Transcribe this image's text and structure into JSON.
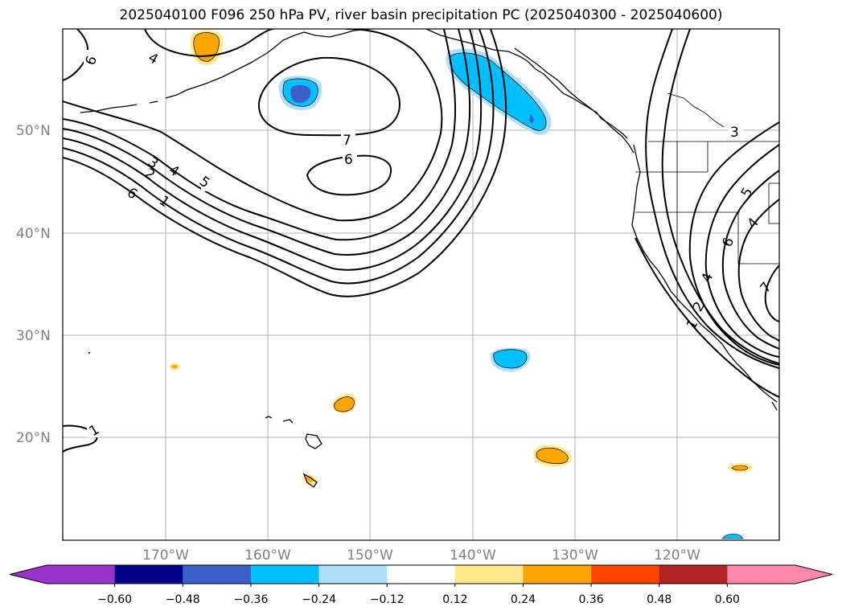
{
  "title": "2025040100 F096 250 hPa PV, river basin precipitation PC (2025040300 - 2025040600)",
  "map": {
    "lat_labels": [
      "50°N",
      "40°N",
      "30°N",
      "20°N"
    ],
    "lon_labels": [
      "170°W",
      "160°W",
      "150°W",
      "140°W",
      "130°W",
      "120°W"
    ],
    "contour_labels": [
      "6",
      "4",
      "7",
      "6",
      "5",
      "4",
      "3",
      "2",
      "1",
      "6",
      "3",
      "5",
      "4",
      "6",
      "4",
      "2",
      "1",
      "7",
      "1"
    ]
  },
  "colorbar": {
    "colors": [
      "#9933cc",
      "#00008b",
      "#3d5fcc",
      "#00bfff",
      "#ade0f8",
      "#ffffff",
      "#ffe98c",
      "#ffa500",
      "#ff4500",
      "#b22222",
      "#ff88aa"
    ],
    "extend_low_color": "#9933cc",
    "extend_high_color": "#ff88aa",
    "tick_labels": [
      "−0.60",
      "−0.48",
      "−0.36",
      "−0.24",
      "−0.12",
      "0.12",
      "0.24",
      "0.36",
      "0.48",
      "0.60"
    ]
  }
}
